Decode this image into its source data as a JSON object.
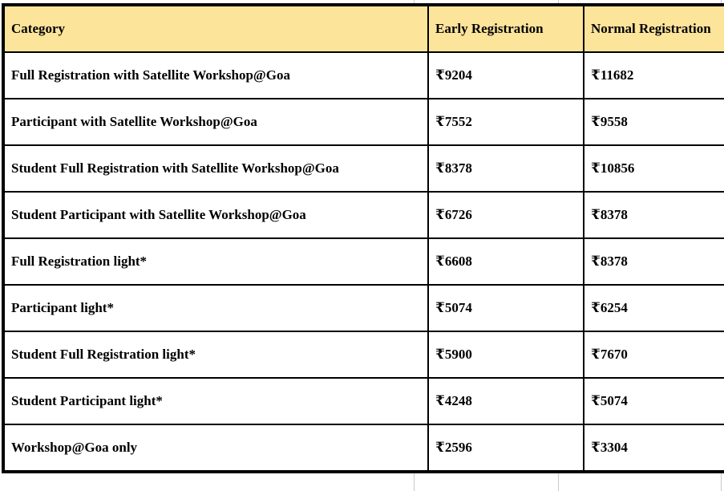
{
  "colors": {
    "header_bg": "#fce49b",
    "border": "#000000",
    "text": "#000000",
    "gridline_ext": "#c9c9c9"
  },
  "table": {
    "columns": {
      "category": "Category",
      "early": "Early Registration",
      "normal": "Normal Registration"
    },
    "rows": [
      {
        "category": "Full Registration with Satellite Workshop@Goa",
        "early": "₹9204",
        "normal": "₹11682"
      },
      {
        "category": "Participant with Satellite Workshop@Goa",
        "early": "₹7552",
        "normal": "₹9558"
      },
      {
        "category": "Student Full Registration with Satellite Workshop@Goa",
        "early": "₹8378",
        "normal": "₹10856"
      },
      {
        "category": "Student Participant with Satellite Workshop@Goa",
        "early": "₹6726",
        "normal": "₹8378"
      },
      {
        "category": "Full Registration light*",
        "early": "₹6608",
        "normal": "₹8378"
      },
      {
        "category": "Participant light*",
        "early": "₹5074",
        "normal": "₹6254"
      },
      {
        "category": "Student Full Registration light*",
        "early": "₹5900",
        "normal": "₹7670"
      },
      {
        "category": "Student Participant light*",
        "early": "₹4248",
        "normal": "₹5074"
      },
      {
        "category": "Workshop@Goa only",
        "early": "₹2596",
        "normal": "₹3304"
      }
    ]
  }
}
